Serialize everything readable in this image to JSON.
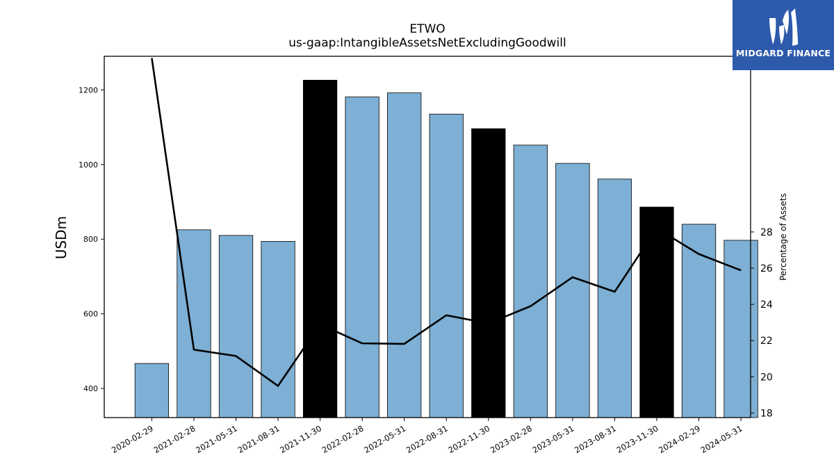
{
  "brand": {
    "name": "MIDGARD FINANCE",
    "color": "#2d5aab"
  },
  "chart_data": {
    "type": "bar",
    "title": "ETWO",
    "subtitle": "us-gaap:IntangibleAssetsNetExcludingGoodwill",
    "ylabel": "USDm",
    "y2label": "Percentage of Assets",
    "ylim": [
      322,
      1290
    ],
    "y2lim": [
      17.75,
      37.7
    ],
    "yticks": [
      400,
      600,
      800,
      1000,
      1200
    ],
    "y2ticks": [
      18,
      20,
      22,
      24,
      26,
      28
    ],
    "categories": [
      "2020-02-29",
      "2021-02-28",
      "2021-05-31",
      "2021-08-31",
      "2021-11-30",
      "2022-02-28",
      "2022-05-31",
      "2022-08-31",
      "2022-11-30",
      "2023-02-28",
      "2023-05-31",
      "2023-08-31",
      "2023-11-30",
      "2024-02-29",
      "2024-05-31"
    ],
    "series": [
      {
        "type": "bar",
        "axis": "left",
        "values": [
          467,
          825,
          810,
          794,
          1226,
          1181,
          1192,
          1135,
          1096,
          1052,
          1003,
          961,
          886,
          840,
          797
        ],
        "highlight": [
          false,
          false,
          false,
          false,
          true,
          false,
          false,
          false,
          true,
          false,
          false,
          false,
          true,
          false,
          false
        ]
      },
      {
        "type": "line",
        "axis": "right",
        "values": [
          37.6,
          21.5,
          21.15,
          19.5,
          22.9,
          21.85,
          21.82,
          23.4,
          22.95,
          23.9,
          25.5,
          24.7,
          28.2,
          26.78,
          25.88
        ]
      }
    ],
    "colors": {
      "bar": "#7eafd4",
      "bar_highlight": "#000000",
      "line": "#000000"
    },
    "grid": false,
    "legend": "none"
  }
}
